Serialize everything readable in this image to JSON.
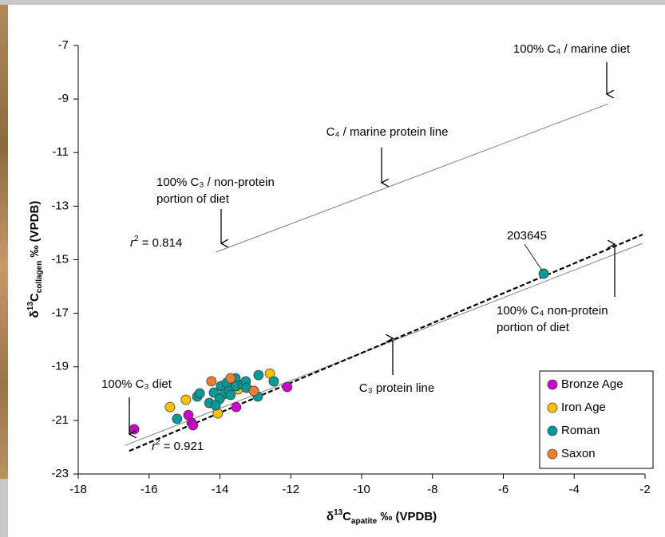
{
  "chart_data": {
    "type": "scatter",
    "x_label": [
      "δ",
      "13",
      "C",
      "apatite",
      " ‰ (VPDB)"
    ],
    "y_label": [
      "δ",
      "13",
      "C",
      "collagen",
      " ‰ (VPDB)"
    ],
    "xlim": [
      -18,
      -2
    ],
    "ylim": [
      -23,
      -7
    ],
    "xticks": [
      -18,
      -16,
      -14,
      -12,
      -10,
      -8,
      -6,
      -4,
      -2
    ],
    "yticks": [
      -23,
      -21,
      -19,
      -17,
      -15,
      -13,
      -11,
      -9,
      -7
    ],
    "grid": false,
    "legend": "lower right",
    "series": [
      {
        "name": "Bronze Age",
        "color": "#cc00cc",
        "x": [
          -16.42,
          -14.89,
          -14.8,
          -14.76,
          -13.54,
          -12.1
        ],
        "y": [
          -21.33,
          -20.8,
          -21.09,
          -21.18,
          -20.5,
          -19.75
        ]
      },
      {
        "name": "Iron Age",
        "color": "#ffc000",
        "x": [
          -15.41,
          -14.96,
          -14.06,
          -13.49,
          -12.59
        ],
        "y": [
          -20.5,
          -20.23,
          -20.74,
          -19.84,
          -19.25
        ]
      },
      {
        "name": "Roman",
        "color": "#009999",
        "x": [
          -15.21,
          -14.64,
          -14.57,
          -14.3,
          -14.17,
          -13.97,
          -13.88,
          -14.01,
          -13.81,
          -13.74,
          -13.7,
          -13.56,
          -13.54,
          -13.36,
          -13.27,
          -13.25,
          -12.93,
          -12.91,
          -12.48,
          -14.12,
          -4.86
        ],
        "y": [
          -20.94,
          -20.11,
          -19.99,
          -20.35,
          -19.96,
          -19.72,
          -20.02,
          -20.2,
          -19.6,
          -19.9,
          -20.05,
          -19.43,
          -19.72,
          -19.66,
          -19.54,
          -19.78,
          -20.11,
          -19.31,
          -19.54,
          -20.44,
          -15.52
        ]
      },
      {
        "name": "Saxon",
        "color": "#ed7d31",
        "x": [
          -14.24,
          -13.7,
          -13.04
        ],
        "y": [
          -19.54,
          -19.43,
          -19.9
        ]
      }
    ],
    "lines": [
      {
        "color": "#808080",
        "style": "solid",
        "x": [
          -14.12,
          -3.04
        ],
        "y": [
          -14.72,
          -9.18
        ]
      },
      {
        "color": "#808080",
        "style": "solid",
        "x": [
          -16.67,
          -2.07
        ],
        "y": [
          -21.93,
          -14.39
        ]
      },
      {
        "color": "#000000",
        "style": "dashed",
        "x": [
          -16.56,
          -2.07
        ],
        "y": [
          -22.14,
          -14.06
        ]
      }
    ],
    "annotations": [
      {
        "lines": [
          "100% C₄ / marine diet"
        ]
      },
      {
        "lines": [
          "C₄ / marine protein line"
        ]
      },
      {
        "lines": [
          "100% C₃ / non-protein",
          "portion of diet"
        ]
      },
      {
        "lines": [
          "203645"
        ]
      },
      {
        "lines": [
          "100% C₄ non-protein",
          "portion of diet"
        ]
      },
      {
        "lines": [
          "C₃ protein line"
        ]
      },
      {
        "lines": [
          "100% C₃ diet"
        ]
      }
    ],
    "r2_labels": [
      [
        "r",
        "2",
        " = 0.814"
      ],
      [
        "r",
        "2",
        " = 0.921"
      ]
    ]
  }
}
